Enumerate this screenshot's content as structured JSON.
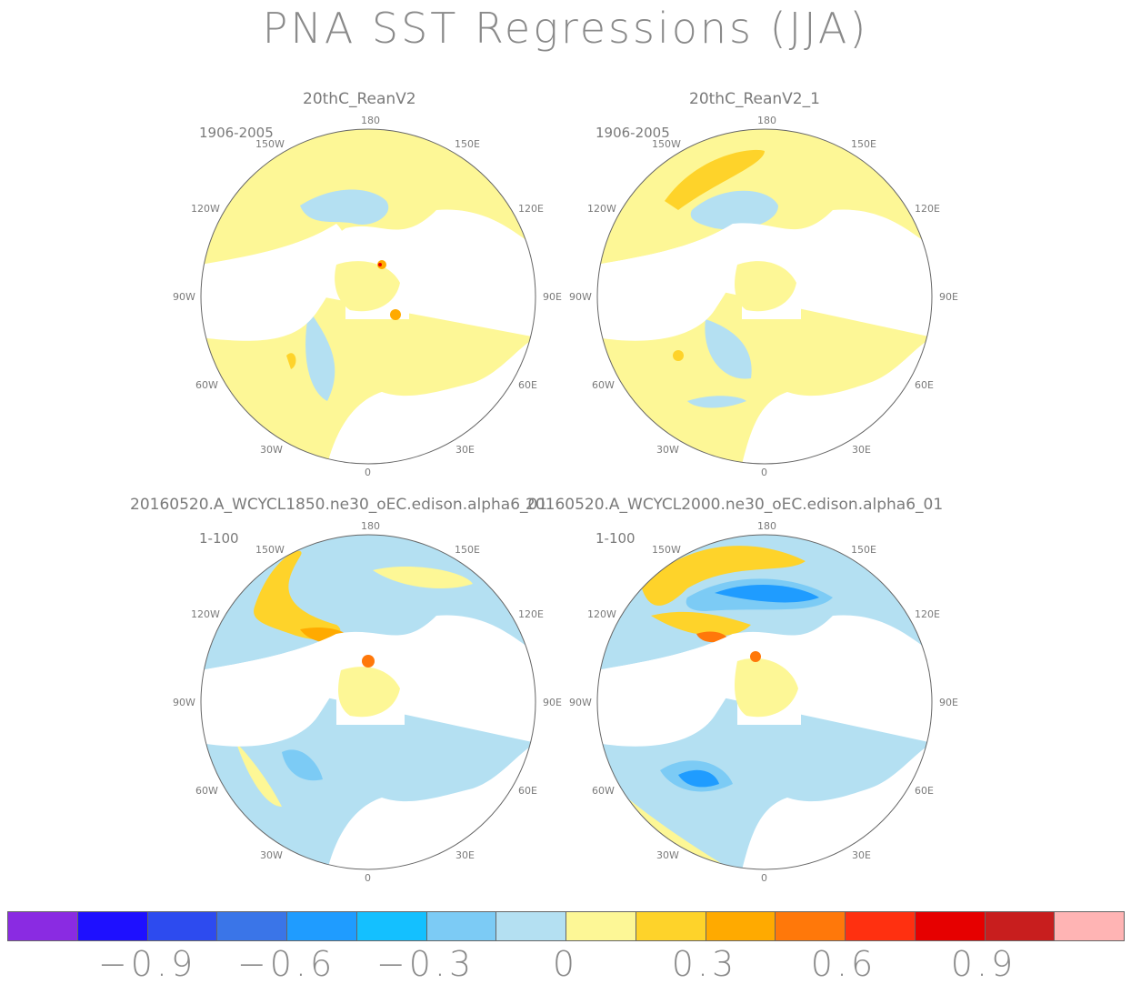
{
  "title": "PNA SST Regressions (JJA)",
  "panels": [
    {
      "name": "20thC_ReanV2",
      "period": "1906-2005"
    },
    {
      "name": "20thC_ReanV2_1",
      "period": "1906-2005"
    },
    {
      "name": "20160520.A_WCYCL1850.ne30_oEC.edison.alpha6_01",
      "period": "1-100"
    },
    {
      "name": "20160520.A_WCYCL2000.ne30_oEC.edison.alpha6_01",
      "period": "1-100"
    }
  ],
  "lon_labels": {
    "top": "180",
    "upper_left": "150W",
    "upper_right": "150E",
    "mid_left_upper": "120W",
    "mid_right_upper": "120E",
    "left": "90W",
    "right": "90E",
    "mid_left_lower": "60W",
    "mid_right_lower": "60E",
    "lower_left": "30W",
    "lower_right": "30E",
    "bottom": "0"
  },
  "colorbar": {
    "colors": [
      "#8a2be2",
      "#1e10ff",
      "#2d4bef",
      "#3a75e8",
      "#1f9cff",
      "#14c0ff",
      "#7ccbf5",
      "#b4e0f2",
      "#fdf796",
      "#fed32a",
      "#ffaa00",
      "#ff780a",
      "#ff3010",
      "#e60000",
      "#c81e1e",
      "#ffb4b4"
    ],
    "tick_labels": [
      "-0.9",
      "-0.6",
      "-0.3",
      "0",
      "0.3",
      "0.6",
      "0.9"
    ]
  }
}
